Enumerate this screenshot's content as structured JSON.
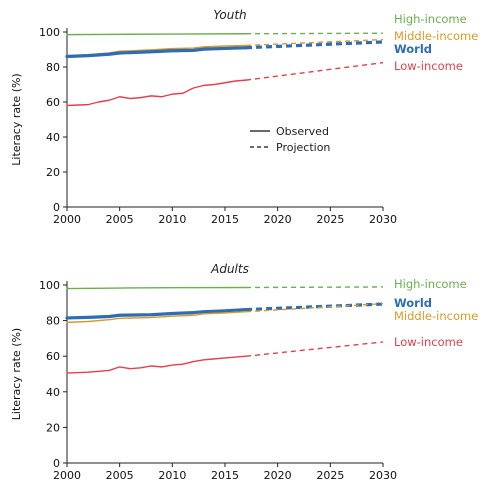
{
  "chart_data": [
    {
      "type": "line",
      "title": "Youth",
      "xlabel": "",
      "ylabel": "Literacy rate (%)",
      "xlim": [
        2000,
        2030
      ],
      "ylim": [
        0,
        100
      ],
      "x_ticks": [
        "2000",
        "2005",
        "2010",
        "2015",
        "2020",
        "2025",
        "2030"
      ],
      "y_ticks": [
        "0",
        "20",
        "40",
        "60",
        "80",
        "100"
      ],
      "grid": false,
      "legend": {
        "position": "center-right",
        "entries": [
          {
            "label": "Observed",
            "style": "solid"
          },
          {
            "label": "Projection",
            "style": "dashed"
          }
        ]
      },
      "series": [
        {
          "name": "High-income",
          "color": "#6ab04c",
          "bold": false,
          "observed": [
            [
              2000,
              98.5
            ],
            [
              2005,
              98.7
            ],
            [
              2010,
              98.8
            ],
            [
              2017,
              99.0
            ]
          ],
          "projection": [
            [
              2017,
              99.0
            ],
            [
              2030,
              99.3
            ]
          ]
        },
        {
          "name": "Middle-income",
          "color": "#d99a28",
          "bold": false,
          "observed": [
            [
              2000,
              86.5
            ],
            [
              2002,
              87.0
            ],
            [
              2004,
              88.0
            ],
            [
              2005,
              89.0
            ],
            [
              2008,
              89.8
            ],
            [
              2010,
              90.5
            ],
            [
              2012,
              90.8
            ],
            [
              2013,
              91.5
            ],
            [
              2015,
              92.0
            ],
            [
              2017,
              92.3
            ]
          ],
          "projection": [
            [
              2017,
              92.3
            ],
            [
              2030,
              95.7
            ]
          ]
        },
        {
          "name": "World",
          "color": "#2e6db4",
          "bold": true,
          "observed": [
            [
              2000,
              86.0
            ],
            [
              2002,
              86.5
            ],
            [
              2004,
              87.3
            ],
            [
              2005,
              88.0
            ],
            [
              2008,
              88.7
            ],
            [
              2010,
              89.3
            ],
            [
              2012,
              89.5
            ],
            [
              2013,
              90.2
            ],
            [
              2015,
              90.6
            ],
            [
              2017,
              91.0
            ]
          ],
          "projection": [
            [
              2017,
              91.0
            ],
            [
              2030,
              94.3
            ]
          ]
        },
        {
          "name": "Low-income",
          "color": "#e0414b",
          "bold": false,
          "observed": [
            [
              2000,
              58.0
            ],
            [
              2002,
              58.5
            ],
            [
              2003,
              60.0
            ],
            [
              2004,
              61.0
            ],
            [
              2005,
              63.0
            ],
            [
              2006,
              62.0
            ],
            [
              2007,
              62.5
            ],
            [
              2008,
              63.5
            ],
            [
              2009,
              63.0
            ],
            [
              2010,
              64.5
            ],
            [
              2011,
              65.0
            ],
            [
              2012,
              68.0
            ],
            [
              2013,
              69.5
            ],
            [
              2014,
              70.0
            ],
            [
              2015,
              71.0
            ],
            [
              2016,
              72.0
            ],
            [
              2017,
              72.5
            ]
          ],
          "projection": [
            [
              2017,
              72.5
            ],
            [
              2030,
              82.5
            ]
          ]
        }
      ]
    },
    {
      "type": "line",
      "title": "Adults",
      "xlabel": "",
      "ylabel": "Literacy rate (%)",
      "xlim": [
        2000,
        2030
      ],
      "ylim": [
        0,
        100
      ],
      "x_ticks": [
        "2000",
        "2005",
        "2010",
        "2015",
        "2020",
        "2025",
        "2030"
      ],
      "y_ticks": [
        "0",
        "20",
        "40",
        "60",
        "80",
        "100"
      ],
      "grid": false,
      "series": [
        {
          "name": "High-income",
          "color": "#6ab04c",
          "bold": false,
          "observed": [
            [
              2000,
              98.0
            ],
            [
              2005,
              98.3
            ],
            [
              2010,
              98.5
            ],
            [
              2017,
              98.6
            ]
          ],
          "projection": [
            [
              2017,
              98.6
            ],
            [
              2030,
              98.9
            ]
          ]
        },
        {
          "name": "World",
          "color": "#2e6db4",
          "bold": true,
          "observed": [
            [
              2000,
              81.5
            ],
            [
              2002,
              81.8
            ],
            [
              2004,
              82.3
            ],
            [
              2005,
              83.0
            ],
            [
              2008,
              83.3
            ],
            [
              2010,
              84.0
            ],
            [
              2012,
              84.5
            ],
            [
              2013,
              85.0
            ],
            [
              2015,
              85.5
            ],
            [
              2017,
              86.2
            ]
          ],
          "projection": [
            [
              2017,
              86.2
            ],
            [
              2030,
              89.3
            ]
          ]
        },
        {
          "name": "Middle-income",
          "color": "#d99a28",
          "bold": false,
          "observed": [
            [
              2000,
              79.0
            ],
            [
              2002,
              79.5
            ],
            [
              2004,
              80.5
            ],
            [
              2005,
              81.3
            ],
            [
              2008,
              81.7
            ],
            [
              2010,
              82.5
            ],
            [
              2012,
              83.0
            ],
            [
              2013,
              83.8
            ],
            [
              2015,
              84.3
            ],
            [
              2017,
              85.0
            ]
          ],
          "projection": [
            [
              2017,
              85.0
            ],
            [
              2030,
              89.5
            ]
          ]
        },
        {
          "name": "Low-income",
          "color": "#e0414b",
          "bold": false,
          "observed": [
            [
              2000,
              50.5
            ],
            [
              2002,
              51.0
            ],
            [
              2003,
              51.5
            ],
            [
              2004,
              52.0
            ],
            [
              2005,
              54.0
            ],
            [
              2006,
              53.0
            ],
            [
              2007,
              53.5
            ],
            [
              2008,
              54.5
            ],
            [
              2009,
              54.0
            ],
            [
              2010,
              55.0
            ],
            [
              2011,
              55.5
            ],
            [
              2012,
              57.0
            ],
            [
              2013,
              58.0
            ],
            [
              2014,
              58.5
            ],
            [
              2015,
              59.0
            ],
            [
              2016,
              59.5
            ],
            [
              2017,
              60.0
            ]
          ],
          "projection": [
            [
              2017,
              60.0
            ],
            [
              2030,
              68.0
            ]
          ]
        }
      ]
    }
  ]
}
